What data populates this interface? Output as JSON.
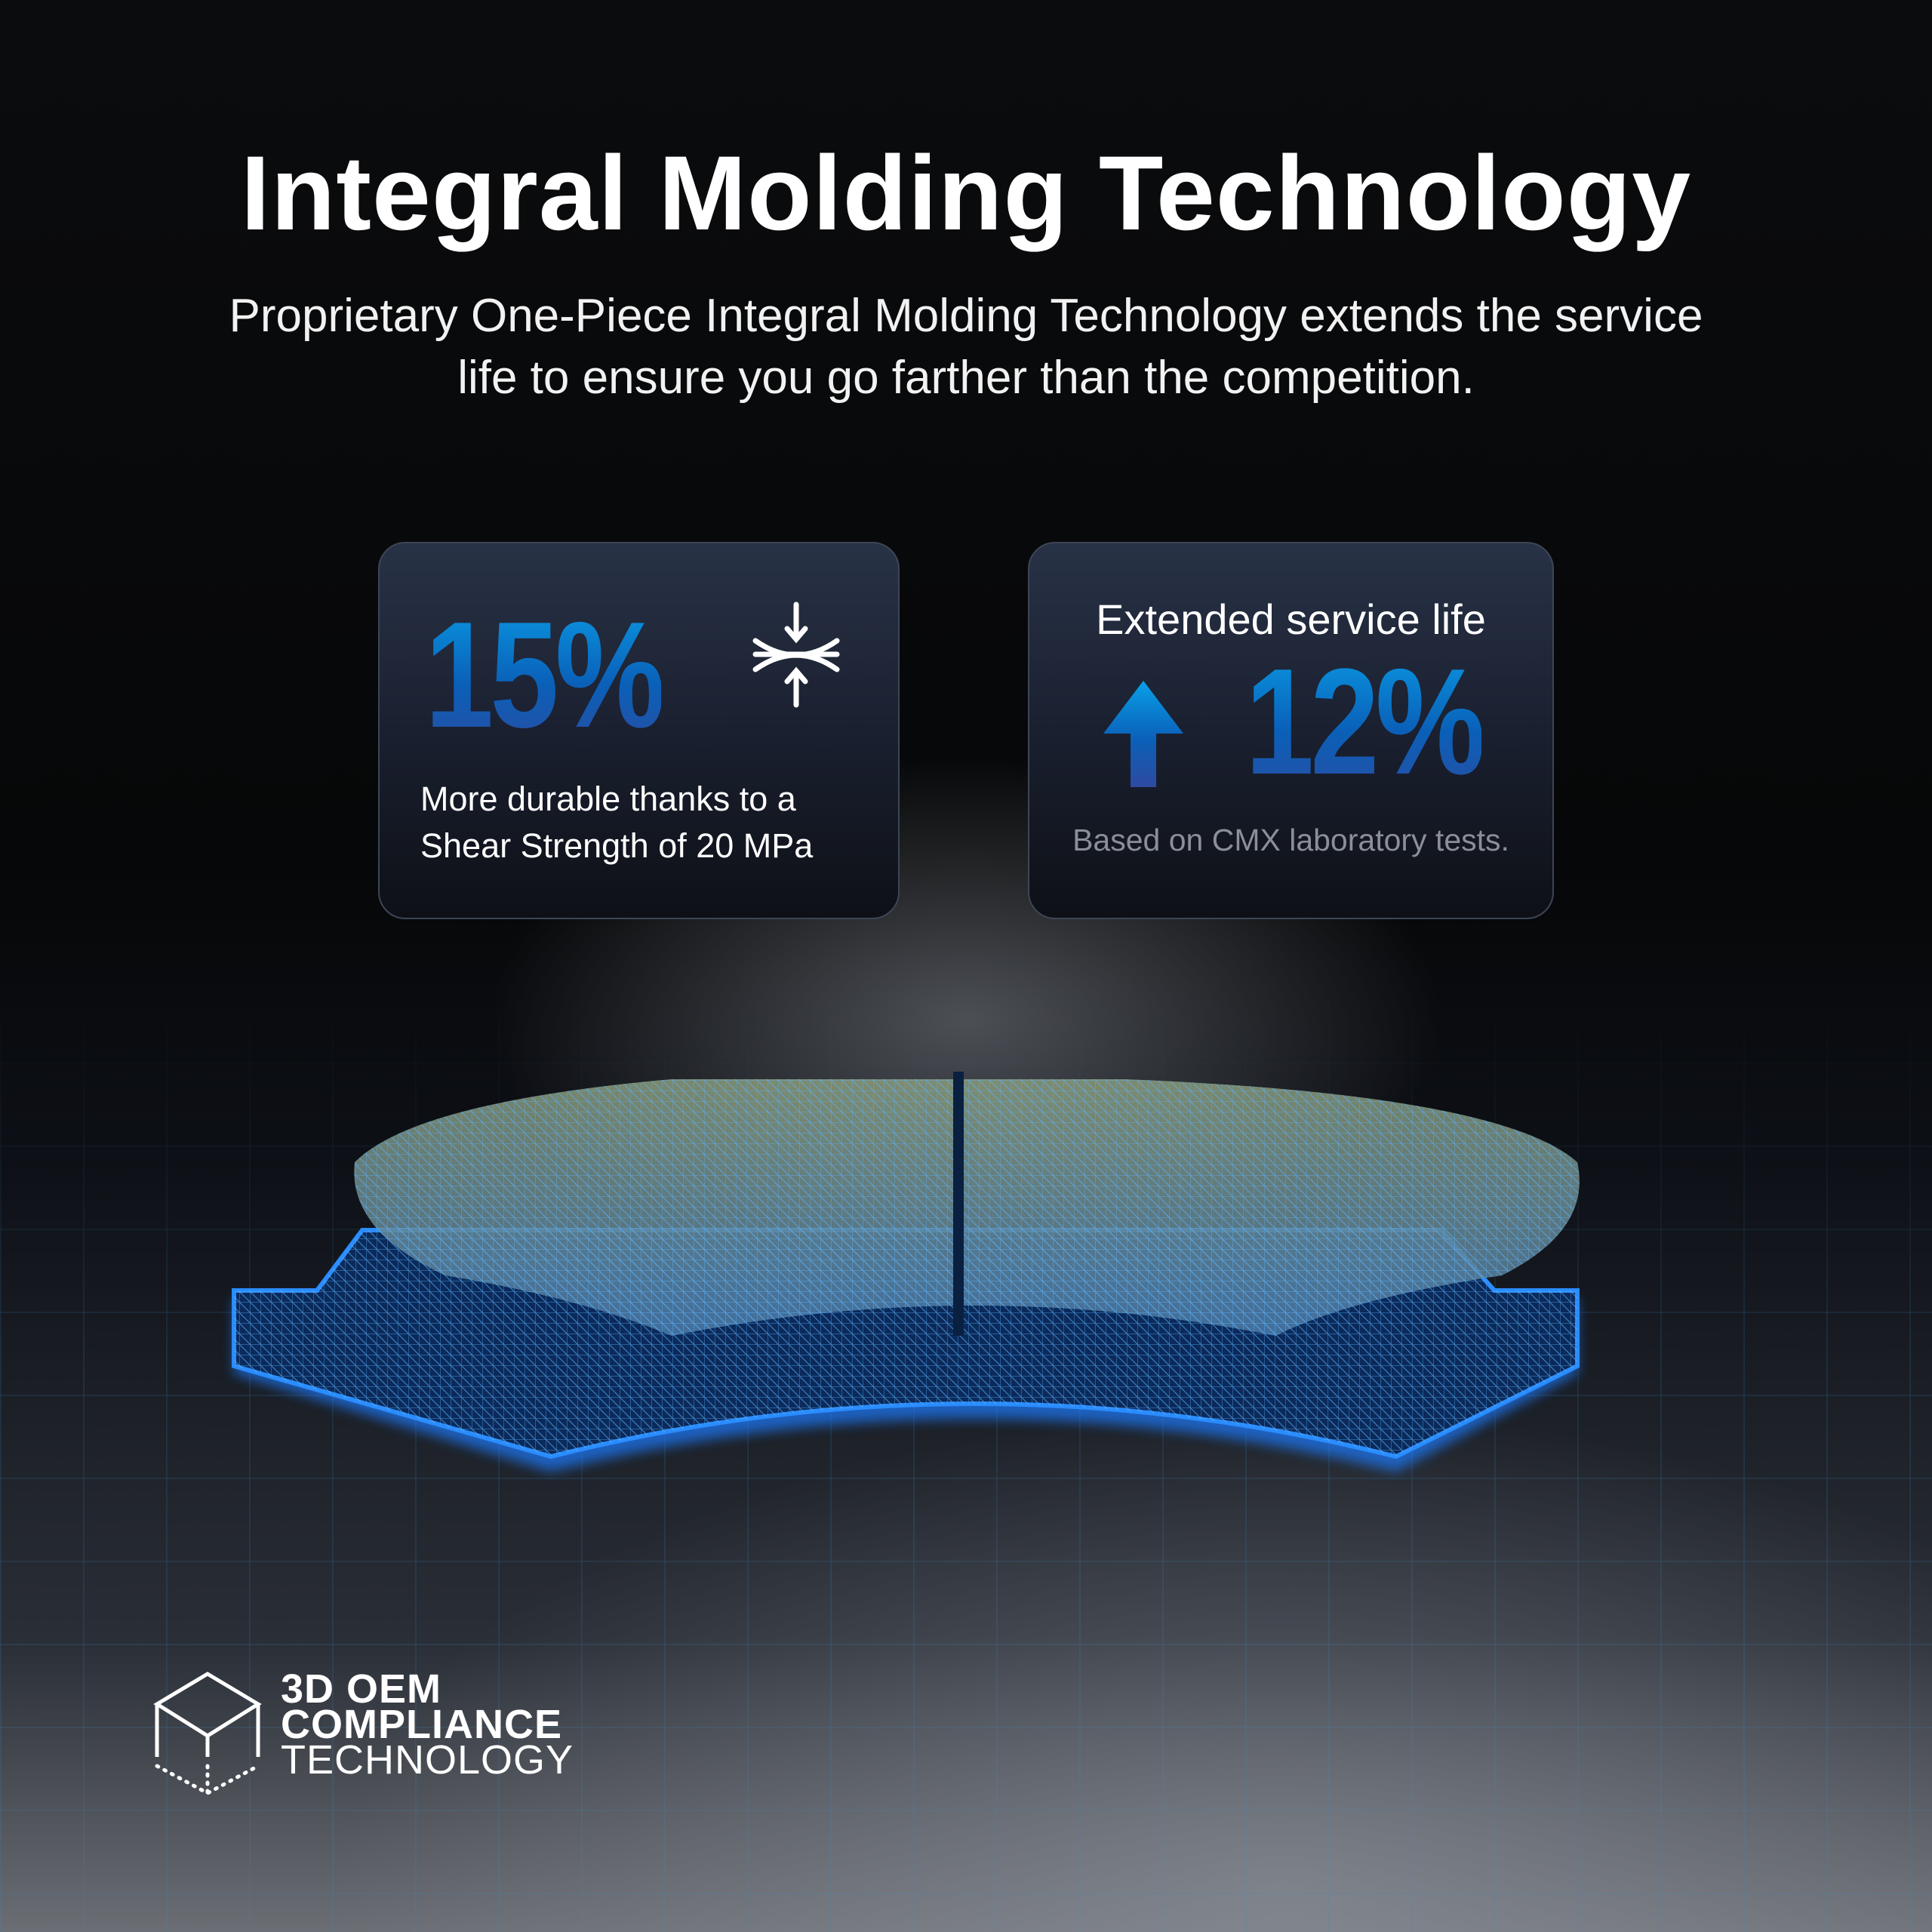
{
  "header": {
    "title": "Integral Molding Technology",
    "subtitle_line1": "Proprietary One-Piece Integral Molding Technology extends the service",
    "subtitle_line2": "life to ensure you go farther than the competition."
  },
  "card_durability": {
    "value": "15%",
    "icon": "compression-arrows-icon",
    "line1": "More durable thanks to a",
    "line2": "Shear Strength of 20 MPa"
  },
  "card_service_life": {
    "heading": "Extended service life",
    "icon": "arrow-up-icon",
    "value": "12%",
    "note": "Based on CMX laboratory tests."
  },
  "logo": {
    "icon": "cube-icon",
    "line1": "3D OEM",
    "line2": "COMPLIANCE",
    "line3": "TECHNOLOGY"
  },
  "colors": {
    "accent_blue": "#0a8fdc",
    "deep_blue": "#2e4aa0",
    "glow": "#1e7bff"
  }
}
